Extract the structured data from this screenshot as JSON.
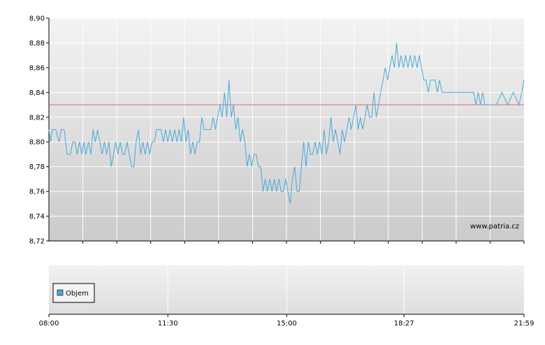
{
  "chart_data": [
    {
      "type": "line",
      "title": "",
      "xlabel": "",
      "ylabel": "",
      "ylim": [
        8.72,
        8.9
      ],
      "y_ticks": [
        "8,90",
        "8,88",
        "8,86",
        "8,84",
        "8,82",
        "8,80",
        "8,78",
        "8,76",
        "8,74",
        "8,72"
      ],
      "grid": true,
      "reference_line": {
        "value": 8.83,
        "color": "#e06666"
      },
      "watermark": "www.patria.cz",
      "series": [
        {
          "color": "#4aa8d8",
          "points": [
            [
              "08:00",
              8.81
            ],
            [
              "08:03",
              8.8
            ],
            [
              "08:06",
              8.81
            ],
            [
              "08:12",
              8.81
            ],
            [
              "08:18",
              8.8
            ],
            [
              "08:22",
              8.81
            ],
            [
              "08:27",
              8.81
            ],
            [
              "08:32",
              8.79
            ],
            [
              "08:38",
              8.79
            ],
            [
              "08:42",
              8.8
            ],
            [
              "08:46",
              8.8
            ],
            [
              "08:50",
              8.79
            ],
            [
              "08:54",
              8.8
            ],
            [
              "08:58",
              8.79
            ],
            [
              "09:02",
              8.8
            ],
            [
              "09:05",
              8.79
            ],
            [
              "09:10",
              8.8
            ],
            [
              "09:14",
              8.79
            ],
            [
              "09:18",
              8.81
            ],
            [
              "09:22",
              8.8
            ],
            [
              "09:26",
              8.81
            ],
            [
              "09:30",
              8.8
            ],
            [
              "09:34",
              8.79
            ],
            [
              "09:38",
              8.8
            ],
            [
              "09:42",
              8.79
            ],
            [
              "09:46",
              8.8
            ],
            [
              "09:50",
              8.78
            ],
            [
              "09:54",
              8.79
            ],
            [
              "09:58",
              8.8
            ],
            [
              "10:02",
              8.79
            ],
            [
              "10:06",
              8.8
            ],
            [
              "10:10",
              8.79
            ],
            [
              "10:14",
              8.79
            ],
            [
              "10:18",
              8.8
            ],
            [
              "10:22",
              8.79
            ],
            [
              "10:26",
              8.78
            ],
            [
              "10:30",
              8.78
            ],
            [
              "10:34",
              8.8
            ],
            [
              "10:38",
              8.81
            ],
            [
              "10:42",
              8.79
            ],
            [
              "10:46",
              8.8
            ],
            [
              "10:50",
              8.79
            ],
            [
              "10:54",
              8.8
            ],
            [
              "10:58",
              8.79
            ],
            [
              "11:02",
              8.8
            ],
            [
              "11:06",
              8.8
            ],
            [
              "11:10",
              8.81
            ],
            [
              "11:14",
              8.81
            ],
            [
              "11:18",
              8.81
            ],
            [
              "11:22",
              8.8
            ],
            [
              "11:26",
              8.81
            ],
            [
              "11:30",
              8.8
            ],
            [
              "11:34",
              8.81
            ],
            [
              "11:38",
              8.8
            ],
            [
              "11:42",
              8.81
            ],
            [
              "11:46",
              8.8
            ],
            [
              "11:50",
              8.81
            ],
            [
              "11:54",
              8.8
            ],
            [
              "11:58",
              8.82
            ],
            [
              "12:02",
              8.8
            ],
            [
              "12:06",
              8.81
            ],
            [
              "12:10",
              8.79
            ],
            [
              "12:14",
              8.8
            ],
            [
              "12:18",
              8.79
            ],
            [
              "12:22",
              8.8
            ],
            [
              "12:26",
              8.8
            ],
            [
              "12:30",
              8.82
            ],
            [
              "12:34",
              8.81
            ],
            [
              "12:38",
              8.81
            ],
            [
              "12:42",
              8.81
            ],
            [
              "12:46",
              8.81
            ],
            [
              "12:50",
              8.82
            ],
            [
              "12:54",
              8.81
            ],
            [
              "12:58",
              8.82
            ],
            [
              "13:02",
              8.83
            ],
            [
              "13:06",
              8.82
            ],
            [
              "13:10",
              8.84
            ],
            [
              "13:14",
              8.82
            ],
            [
              "13:18",
              8.85
            ],
            [
              "13:22",
              8.82
            ],
            [
              "13:26",
              8.83
            ],
            [
              "13:30",
              8.81
            ],
            [
              "13:34",
              8.82
            ],
            [
              "13:38",
              8.8
            ],
            [
              "13:42",
              8.81
            ],
            [
              "13:46",
              8.8
            ],
            [
              "13:50",
              8.78
            ],
            [
              "13:54",
              8.79
            ],
            [
              "13:58",
              8.78
            ],
            [
              "14:02",
              8.79
            ],
            [
              "14:06",
              8.79
            ],
            [
              "14:10",
              8.78
            ],
            [
              "14:14",
              8.78
            ],
            [
              "14:18",
              8.76
            ],
            [
              "14:22",
              8.77
            ],
            [
              "14:26",
              8.76
            ],
            [
              "14:30",
              8.77
            ],
            [
              "14:34",
              8.76
            ],
            [
              "14:38",
              8.77
            ],
            [
              "14:42",
              8.76
            ],
            [
              "14:46",
              8.77
            ],
            [
              "14:50",
              8.76
            ],
            [
              "14:54",
              8.76
            ],
            [
              "14:58",
              8.77
            ],
            [
              "15:02",
              8.76
            ],
            [
              "15:06",
              8.75
            ],
            [
              "15:10",
              8.77
            ],
            [
              "15:14",
              8.78
            ],
            [
              "15:18",
              8.76
            ],
            [
              "15:22",
              8.76
            ],
            [
              "15:26",
              8.78
            ],
            [
              "15:30",
              8.8
            ],
            [
              "15:34",
              8.78
            ],
            [
              "15:38",
              8.8
            ],
            [
              "15:42",
              8.79
            ],
            [
              "15:46",
              8.79
            ],
            [
              "15:50",
              8.8
            ],
            [
              "15:54",
              8.79
            ],
            [
              "15:58",
              8.8
            ],
            [
              "16:02",
              8.79
            ],
            [
              "16:06",
              8.81
            ],
            [
              "16:10",
              8.79
            ],
            [
              "16:14",
              8.8
            ],
            [
              "16:18",
              8.82
            ],
            [
              "16:22",
              8.8
            ],
            [
              "16:26",
              8.81
            ],
            [
              "16:30",
              8.8
            ],
            [
              "16:34",
              8.79
            ],
            [
              "16:38",
              8.81
            ],
            [
              "16:42",
              8.8
            ],
            [
              "16:46",
              8.81
            ],
            [
              "16:50",
              8.82
            ],
            [
              "16:54",
              8.81
            ],
            [
              "16:58",
              8.82
            ],
            [
              "17:02",
              8.83
            ],
            [
              "17:06",
              8.81
            ],
            [
              "17:10",
              8.82
            ],
            [
              "17:14",
              8.81
            ],
            [
              "17:18",
              8.82
            ],
            [
              "17:22",
              8.83
            ],
            [
              "17:26",
              8.82
            ],
            [
              "17:30",
              8.82
            ],
            [
              "17:34",
              8.84
            ],
            [
              "17:38",
              8.82
            ],
            [
              "17:42",
              8.83
            ],
            [
              "17:46",
              8.84
            ],
            [
              "17:50",
              8.85
            ],
            [
              "17:54",
              8.86
            ],
            [
              "17:58",
              8.85
            ],
            [
              "18:02",
              8.86
            ],
            [
              "18:06",
              8.87
            ],
            [
              "18:10",
              8.86
            ],
            [
              "18:14",
              8.88
            ],
            [
              "18:18",
              8.86
            ],
            [
              "18:22",
              8.87
            ],
            [
              "18:26",
              8.86
            ],
            [
              "18:30",
              8.87
            ],
            [
              "18:34",
              8.86
            ],
            [
              "18:38",
              8.87
            ],
            [
              "18:42",
              8.86
            ],
            [
              "18:46",
              8.87
            ],
            [
              "18:50",
              8.86
            ],
            [
              "18:54",
              8.87
            ],
            [
              "18:58",
              8.86
            ],
            [
              "19:02",
              8.85
            ],
            [
              "19:06",
              8.85
            ],
            [
              "19:10",
              8.84
            ],
            [
              "19:14",
              8.85
            ],
            [
              "19:18",
              8.85
            ],
            [
              "19:22",
              8.85
            ],
            [
              "19:26",
              8.84
            ],
            [
              "19:30",
              8.85
            ],
            [
              "19:34",
              8.84
            ],
            [
              "19:38",
              8.84
            ],
            [
              "19:50",
              8.84
            ],
            [
              "20:10",
              8.84
            ],
            [
              "20:30",
              8.84
            ],
            [
              "20:34",
              8.83
            ],
            [
              "20:38",
              8.84
            ],
            [
              "20:42",
              8.83
            ],
            [
              "20:46",
              8.84
            ],
            [
              "20:50",
              8.83
            ],
            [
              "21:00",
              8.83
            ],
            [
              "21:10",
              8.83
            ],
            [
              "21:20",
              8.84
            ],
            [
              "21:30",
              8.83
            ],
            [
              "21:40",
              8.84
            ],
            [
              "21:50",
              8.83
            ],
            [
              "21:55",
              8.84
            ],
            [
              "21:59",
              8.85
            ]
          ]
        }
      ]
    },
    {
      "type": "bar",
      "legend": "Objem",
      "legend_position": "bottom-left",
      "legend_color": "#4aa8d8",
      "x_ticks": [
        "08:00",
        "11:30",
        "15:00",
        "18:27",
        "21:59"
      ],
      "values": []
    }
  ]
}
